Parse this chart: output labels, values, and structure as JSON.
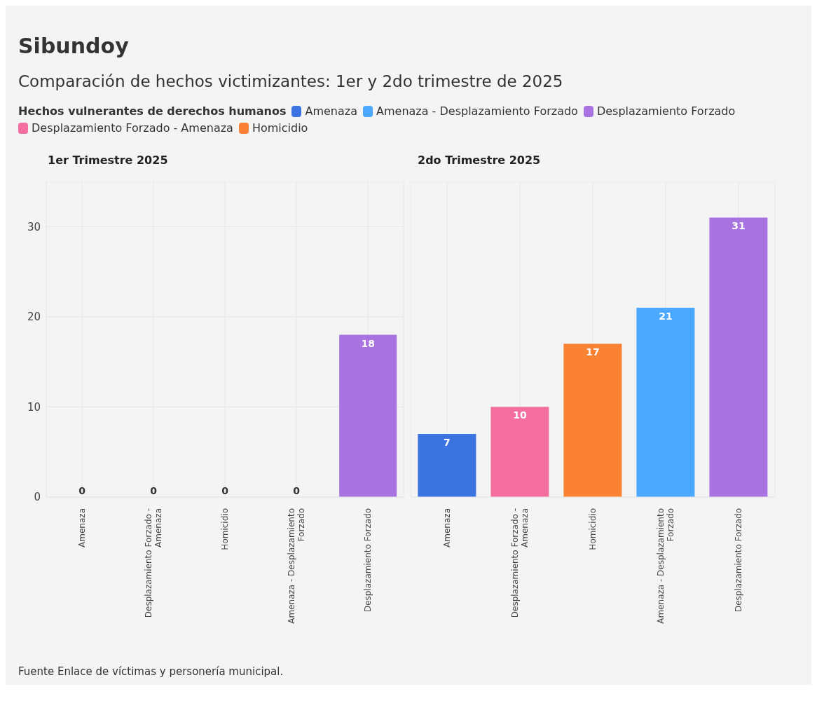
{
  "chart_data": [
    {
      "type": "other",
      "title": "Sibundoy",
      "subtitle": "Comparación de hechos victimizantes: 1er y 2do trimestre de 2025",
      "annotations": [
        "Fuente Enlace de víctimas y personería municipal."
      ]
    },
    {
      "type": "bar",
      "title": "1er Trimestre 2025",
      "legend_title": "Hechos vulnerantes de derechos humanos",
      "legend": "top",
      "stacked": true,
      "data_labels": true,
      "grid": true,
      "ylim": [
        0,
        35
      ],
      "yticks": [
        0,
        10,
        20,
        30
      ],
      "categories": [
        "Amenaza",
        "Desplazamiento Forzado - Amenaza",
        "Homicidio",
        "Amenaza - Desplazamiento Forzado",
        "Desplazamiento Forzado"
      ],
      "series": [
        {
          "name": "Amenaza",
          "color": "#3b73e0",
          "values": [
            0,
            null,
            null,
            null,
            null
          ]
        },
        {
          "name": "Amenaza - Desplazamiento Forzado",
          "color": "#4aa8ff",
          "values": [
            null,
            null,
            null,
            0,
            null
          ]
        },
        {
          "name": "Desplazamiento Forzado",
          "color": "#a872e0",
          "values": [
            null,
            null,
            null,
            null,
            18
          ]
        },
        {
          "name": "Desplazamiento Forzado - Amenaza",
          "color": "#f46f9f",
          "values": [
            null,
            0,
            null,
            null,
            null
          ]
        },
        {
          "name": "Homicidio",
          "color": "#fb8233",
          "values": [
            null,
            null,
            0,
            null,
            null
          ]
        }
      ]
    },
    {
      "type": "bar",
      "title": "2do Trimestre 2025",
      "stacked": true,
      "data_labels": true,
      "grid": true,
      "tick_labels": "x",
      "ylim": [
        0,
        35
      ],
      "yticks": [
        0,
        10,
        20,
        30
      ],
      "categories": [
        "Amenaza",
        "Desplazamiento Forzado - Amenaza",
        "Homicidio",
        "Amenaza - Desplazamiento Forzado",
        "Desplazamiento Forzado"
      ],
      "series": [
        {
          "color": "#3b73e0",
          "values": [
            7,
            null,
            null,
            null,
            null
          ]
        },
        {
          "color": "#4aa8ff",
          "values": [
            null,
            null,
            null,
            21,
            null
          ]
        },
        {
          "color": "#a872e0",
          "values": [
            null,
            null,
            null,
            null,
            31
          ]
        },
        {
          "color": "#f46f9f",
          "values": [
            null,
            10,
            null,
            null,
            null
          ]
        },
        {
          "color": "#fb8233",
          "values": [
            null,
            null,
            17,
            null,
            null
          ]
        }
      ]
    }
  ]
}
